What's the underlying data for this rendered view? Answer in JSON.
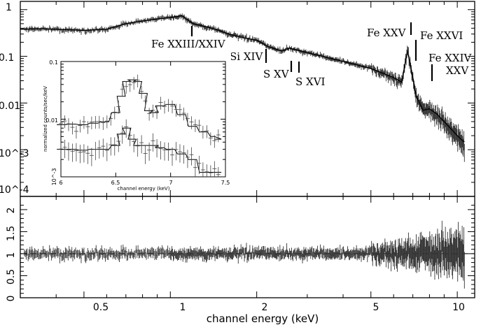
{
  "chart_data": [
    {
      "type": "scatter",
      "panel": "main spectrum",
      "xscale": "log",
      "yscale": "log",
      "xlim": [
        0.3,
        11.5
      ],
      "ylim": [
        0.0001,
        1.5
      ],
      "ytick_labels": [
        "1",
        "0.1",
        "0.01",
        "10^-3",
        "10^-4"
      ],
      "ylabel": "",
      "xlabel": "",
      "model_curve": {
        "x": [
          0.3,
          0.35,
          0.4,
          0.5,
          0.6,
          0.7,
          0.8,
          0.9,
          1.0,
          1.1,
          1.2,
          1.4,
          1.6,
          1.8,
          2.0,
          2.2,
          2.45,
          2.6,
          3.0,
          4.0,
          5.0,
          6.0,
          6.4,
          6.7,
          6.85,
          7.2,
          7.6,
          8.0,
          8.5,
          9.0,
          9.5,
          10.0,
          10.5
        ],
        "y": [
          0.38,
          0.39,
          0.38,
          0.36,
          0.38,
          0.5,
          0.57,
          0.63,
          0.68,
          0.74,
          0.5,
          0.4,
          0.3,
          0.25,
          0.22,
          0.16,
          0.13,
          0.15,
          0.12,
          0.078,
          0.055,
          0.035,
          0.028,
          0.13,
          0.07,
          0.014,
          0.007,
          0.0075,
          0.0058,
          0.004,
          0.0028,
          0.002,
          0.0015
        ]
      },
      "line_labels": [
        {
          "text": "Fe XXIII/XXIV",
          "energy": 1.12
        },
        {
          "text": "Si XIV",
          "energy": 2.0
        },
        {
          "text": "S XV",
          "energy": 2.45
        },
        {
          "text": "S XVI",
          "energy": 2.62
        },
        {
          "text": "Fe XXV",
          "energy": 6.7
        },
        {
          "text": "Fe XXVI",
          "energy": 6.95
        },
        {
          "text": "Fe XXIV",
          "energy": 7.9
        },
        {
          "text": "XXV",
          "energy": 7.9
        }
      ]
    },
    {
      "type": "scatter",
      "panel": "inset",
      "xscale": "linear",
      "yscale": "log",
      "xlim": [
        6.0,
        7.5
      ],
      "ylim": [
        0.001,
        0.1
      ],
      "xticks": [
        6,
        6.5,
        7,
        7.5
      ],
      "ytick_labels": [
        "0.1",
        "0.01",
        "10^-3"
      ],
      "xlabel": "channel energy (keV)",
      "ylabel": "normalized counts/sec/keV",
      "series": [
        {
          "x": [
            6.0,
            6.1,
            6.2,
            6.3,
            6.4,
            6.5,
            6.55,
            6.6,
            6.65,
            6.7,
            6.75,
            6.8,
            6.85,
            6.9,
            7.0,
            7.1,
            7.2,
            7.3,
            7.4,
            7.5
          ],
          "y": [
            0.008,
            0.0082,
            0.008,
            0.0085,
            0.009,
            0.013,
            0.025,
            0.045,
            0.048,
            0.045,
            0.028,
            0.014,
            0.013,
            0.017,
            0.018,
            0.012,
            0.0075,
            0.006,
            0.005,
            0.0045
          ]
        },
        {
          "x": [
            6.0,
            6.1,
            6.2,
            6.3,
            6.4,
            6.5,
            6.55,
            6.6,
            6.65,
            6.7,
            6.75,
            6.8,
            6.85,
            6.9,
            7.0,
            7.1,
            7.2,
            7.3,
            7.4,
            7.5
          ],
          "y": [
            0.003,
            0.003,
            0.0029,
            0.003,
            0.003,
            0.0035,
            0.0055,
            0.007,
            0.0045,
            0.0035,
            0.0035,
            0.0035,
            0.0035,
            0.0032,
            0.003,
            0.0025,
            0.002,
            0.0012,
            0.0012,
            0.0012
          ]
        }
      ]
    },
    {
      "type": "scatter",
      "panel": "ratio",
      "xscale": "log",
      "yscale": "linear",
      "xlim": [
        0.3,
        11.5
      ],
      "ylim": [
        0,
        2.3
      ],
      "ytick_labels": [
        "0",
        "0.5",
        "1",
        "1.5",
        "2"
      ],
      "xtick_labels": [
        "0.5",
        "1",
        "2",
        "5",
        "10"
      ],
      "xticks": [
        0.5,
        1,
        2,
        5,
        10
      ],
      "xlabel": "channel energy (keV)",
      "reference_line": 1
    }
  ]
}
